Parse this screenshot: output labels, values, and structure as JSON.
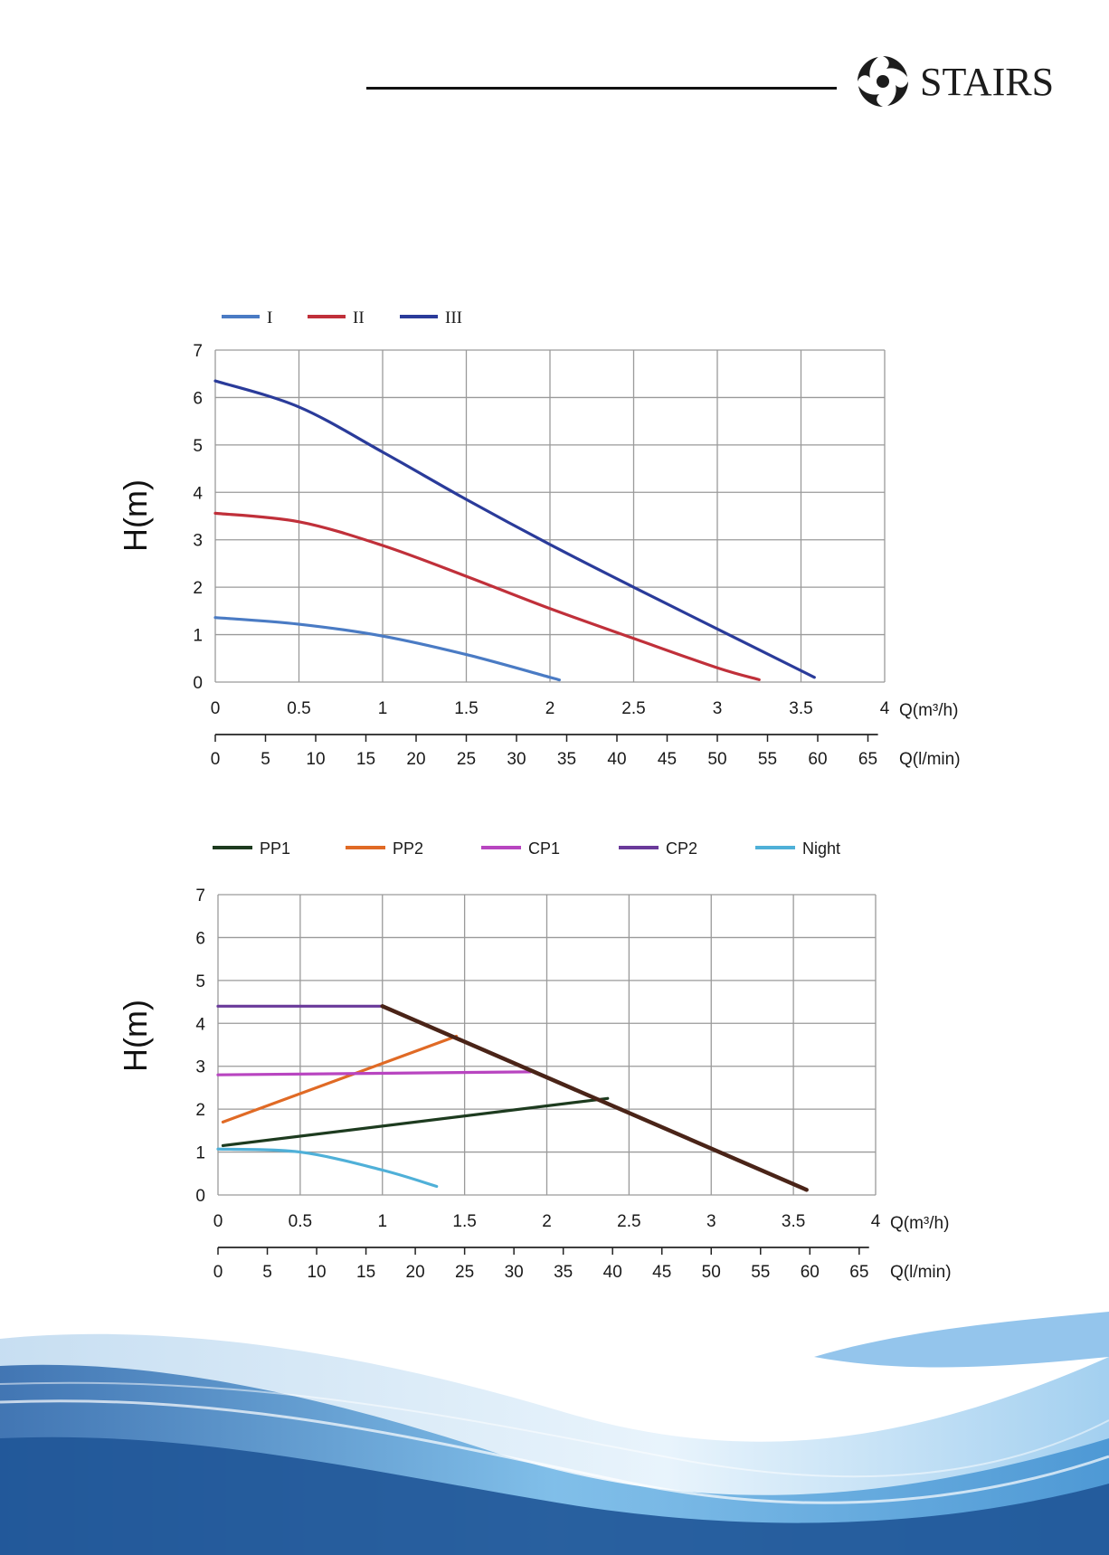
{
  "brand": {
    "name": "STAIRS",
    "logo_icon": "stairs-swirl-logo-icon"
  },
  "colors": {
    "I": "#4a7bc4",
    "II": "#c0303a",
    "III": "#2a3b9a",
    "PP1": "#1d3b1f",
    "PP2": "#e06a25",
    "CP1": "#b845c0",
    "CP2": "#6a3a9a",
    "Night": "#4fb0d8",
    "PP_line": "#4a2418",
    "grid": "#9a9a9a"
  },
  "chart_data": [
    {
      "type": "line",
      "ylabel": "H(m)",
      "xlabel": "Q(m³/h)",
      "x_ticks": [
        "0",
        "0.5",
        "1",
        "1.5",
        "2",
        "2.5",
        "3",
        "3.5",
        "4"
      ],
      "y_ticks": [
        "0",
        "1",
        "2",
        "3",
        "4",
        "5",
        "6",
        "7"
      ],
      "xlim": [
        0,
        4
      ],
      "ylim": [
        0,
        7
      ],
      "secondary_axis": {
        "label": "Q(l/min)",
        "ticks": [
          "0",
          "5",
          "10",
          "15",
          "20",
          "25",
          "30",
          "35",
          "40",
          "45",
          "50",
          "55",
          "60",
          "65"
        ]
      },
      "legend_position": "top-left",
      "grid": true,
      "series": [
        {
          "name": "I",
          "x": [
            0,
            0.5,
            1,
            1.5,
            2,
            2.05
          ],
          "y": [
            1.36,
            1.22,
            0.97,
            0.58,
            0.1,
            0.05
          ]
        },
        {
          "name": "II",
          "x": [
            0,
            0.5,
            1,
            1.5,
            2,
            2.5,
            3,
            3.25
          ],
          "y": [
            3.56,
            3.38,
            2.88,
            2.23,
            1.55,
            0.92,
            0.3,
            0.05
          ]
        },
        {
          "name": "III",
          "x": [
            0,
            0.5,
            1,
            1.5,
            2,
            2.5,
            3,
            3.58
          ],
          "y": [
            6.35,
            5.8,
            4.85,
            3.85,
            2.9,
            2.0,
            1.12,
            0.1
          ]
        }
      ]
    },
    {
      "type": "line",
      "ylabel": "H(m)",
      "xlabel": "Q(m³/h)",
      "x_ticks": [
        "0",
        "0.5",
        "1",
        "1.5",
        "2",
        "2.5",
        "3",
        "3.5",
        "4"
      ],
      "y_ticks": [
        "0",
        "1",
        "2",
        "3",
        "4",
        "5",
        "6",
        "7"
      ],
      "xlim": [
        0,
        4
      ],
      "ylim": [
        0,
        7
      ],
      "secondary_axis": {
        "label": "Q(l/min)",
        "ticks": [
          "0",
          "5",
          "10",
          "15",
          "20",
          "25",
          "30",
          "35",
          "40",
          "45",
          "50",
          "55",
          "60",
          "65"
        ]
      },
      "legend_position": "top",
      "grid": true,
      "series": [
        {
          "name": "PP1",
          "x": [
            0.03,
            2.37
          ],
          "y": [
            1.15,
            2.25
          ]
        },
        {
          "name": "PP2",
          "x": [
            0.03,
            1.45
          ],
          "y": [
            1.7,
            3.7
          ]
        },
        {
          "name": "CP1",
          "x": [
            0.0,
            1.9
          ],
          "y": [
            2.8,
            2.87
          ]
        },
        {
          "name": "CP2",
          "x": [
            0.0,
            1.0
          ],
          "y": [
            4.4,
            4.4
          ]
        },
        {
          "name": "Night",
          "x": [
            0.0,
            0.5,
            1.0,
            1.33
          ],
          "y": [
            1.07,
            1.0,
            0.58,
            0.2
          ]
        },
        {
          "name": "",
          "x": [
            1.0,
            3.58
          ],
          "y": [
            4.4,
            0.12
          ]
        }
      ]
    }
  ]
}
